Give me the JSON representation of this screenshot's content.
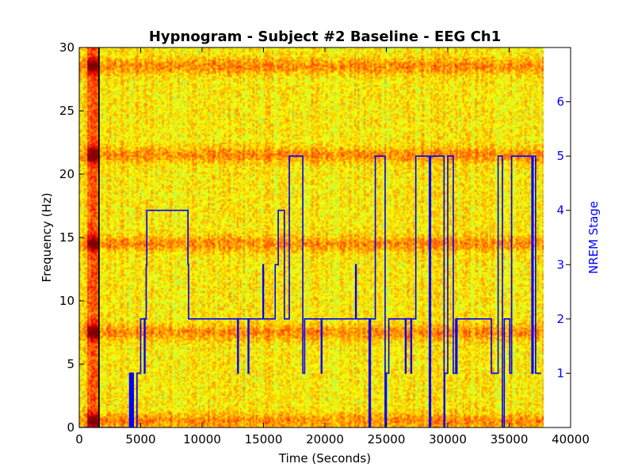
{
  "chart_data": {
    "type": "heatmap",
    "title": "Hypnogram - Subject #2 Baseline - EEG Ch1",
    "xlabel": "Time (Seconds)",
    "ylabel": "Frequency (Hz)",
    "y2label": "NREM Stage",
    "xlim": [
      0,
      40000
    ],
    "ylim": [
      0,
      30
    ],
    "y2lim": [
      0,
      7
    ],
    "x_ticks": [
      0,
      5000,
      10000,
      15000,
      20000,
      25000,
      30000,
      35000,
      40000
    ],
    "y_ticks": [
      0,
      5,
      10,
      15,
      20,
      25,
      30
    ],
    "y2_ticks": [
      1,
      2,
      3,
      4,
      5,
      6
    ],
    "grid": false,
    "spectrogram": {
      "colormap": "jet",
      "x_extent": [
        0,
        37800
      ],
      "y_extent": [
        0,
        30
      ],
      "dominant_colors": [
        "#ffff00",
        "#ffcc00",
        "#ff9900",
        "#ccff33"
      ],
      "high_power_bands_hz": [
        0.5,
        7.5,
        14.5,
        21.5,
        28.5
      ],
      "artifact_region_x": [
        700,
        1500
      ],
      "marker_line_x": 1600
    },
    "series": [
      {
        "line_color": "#0000ff",
        "type": "line",
        "steps": [
          [
            0,
            0
          ],
          [
            4100,
            0
          ],
          [
            4100,
            1
          ],
          [
            4200,
            1
          ],
          [
            4200,
            0
          ],
          [
            4300,
            0
          ],
          [
            4300,
            1
          ],
          [
            4400,
            1
          ],
          [
            4400,
            0
          ],
          [
            4700,
            0
          ],
          [
            4700,
            1
          ],
          [
            5000,
            1
          ],
          [
            5000,
            2
          ],
          [
            5300,
            2
          ],
          [
            5300,
            1
          ],
          [
            5350,
            1
          ],
          [
            5350,
            2
          ],
          [
            5450,
            2
          ],
          [
            5450,
            3
          ],
          [
            5500,
            3
          ],
          [
            5500,
            4
          ],
          [
            8850,
            4
          ],
          [
            8850,
            3
          ],
          [
            8900,
            3
          ],
          [
            8900,
            2
          ],
          [
            12900,
            2
          ],
          [
            12900,
            1
          ],
          [
            12950,
            1
          ],
          [
            12950,
            2
          ],
          [
            13750,
            2
          ],
          [
            13750,
            1
          ],
          [
            13800,
            1
          ],
          [
            13800,
            2
          ],
          [
            14950,
            2
          ],
          [
            14950,
            3
          ],
          [
            15000,
            3
          ],
          [
            15000,
            2
          ],
          [
            15950,
            2
          ],
          [
            15950,
            3
          ],
          [
            16200,
            3
          ],
          [
            16200,
            4
          ],
          [
            16700,
            4
          ],
          [
            16700,
            2
          ],
          [
            17100,
            2
          ],
          [
            17100,
            5
          ],
          [
            18200,
            5
          ],
          [
            18200,
            1
          ],
          [
            18350,
            1
          ],
          [
            18350,
            2
          ],
          [
            19700,
            2
          ],
          [
            19700,
            1
          ],
          [
            19750,
            1
          ],
          [
            19750,
            2
          ],
          [
            22500,
            2
          ],
          [
            22500,
            3
          ],
          [
            22550,
            3
          ],
          [
            22550,
            2
          ],
          [
            23600,
            2
          ],
          [
            23600,
            0
          ],
          [
            23700,
            0
          ],
          [
            23700,
            2
          ],
          [
            24100,
            2
          ],
          [
            24100,
            5
          ],
          [
            24900,
            5
          ],
          [
            24900,
            0
          ],
          [
            25000,
            0
          ],
          [
            25000,
            1
          ],
          [
            25200,
            1
          ],
          [
            25200,
            2
          ],
          [
            26550,
            2
          ],
          [
            26550,
            1
          ],
          [
            26600,
            1
          ],
          [
            26600,
            2
          ],
          [
            27000,
            2
          ],
          [
            27000,
            1
          ],
          [
            27050,
            1
          ],
          [
            27050,
            2
          ],
          [
            27400,
            2
          ],
          [
            27400,
            5
          ],
          [
            28500,
            5
          ],
          [
            28500,
            0
          ],
          [
            28600,
            0
          ],
          [
            28600,
            5
          ],
          [
            29700,
            5
          ],
          [
            29700,
            0
          ],
          [
            29750,
            0
          ],
          [
            29750,
            1
          ],
          [
            30000,
            1
          ],
          [
            30000,
            5
          ],
          [
            30450,
            5
          ],
          [
            30450,
            1
          ],
          [
            30650,
            1
          ],
          [
            30650,
            2
          ],
          [
            30700,
            2
          ],
          [
            30700,
            1
          ],
          [
            30750,
            1
          ],
          [
            30750,
            2
          ],
          [
            33550,
            2
          ],
          [
            33550,
            1
          ],
          [
            34100,
            1
          ],
          [
            34100,
            5
          ],
          [
            34450,
            5
          ],
          [
            34450,
            0
          ],
          [
            34600,
            0
          ],
          [
            34600,
            2
          ],
          [
            35050,
            2
          ],
          [
            35050,
            1
          ],
          [
            35200,
            1
          ],
          [
            35200,
            5
          ],
          [
            36850,
            5
          ],
          [
            36850,
            1
          ],
          [
            36950,
            1
          ],
          [
            36950,
            5
          ],
          [
            37150,
            5
          ],
          [
            37150,
            1
          ],
          [
            37600,
            1
          ]
        ]
      }
    ]
  }
}
